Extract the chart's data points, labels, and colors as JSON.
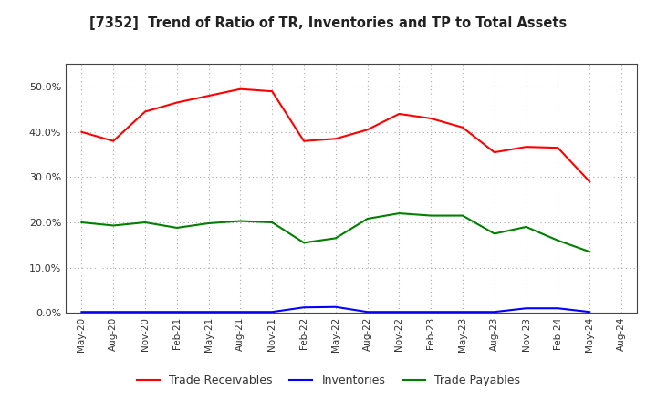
{
  "title": "[7352]  Trend of Ratio of TR, Inventories and TP to Total Assets",
  "x_labels": [
    "May-20",
    "Aug-20",
    "Nov-20",
    "Feb-21",
    "May-21",
    "Aug-21",
    "Nov-21",
    "Feb-22",
    "May-22",
    "Aug-22",
    "Nov-22",
    "Feb-23",
    "May-23",
    "Aug-23",
    "Nov-23",
    "Feb-24",
    "May-24",
    "Aug-24"
  ],
  "trade_receivables": [
    0.4,
    0.38,
    0.445,
    0.465,
    0.48,
    0.495,
    0.49,
    0.38,
    0.385,
    0.405,
    0.44,
    0.43,
    0.41,
    0.355,
    0.367,
    0.365,
    0.29,
    null
  ],
  "inventories": [
    0.002,
    0.002,
    0.002,
    0.002,
    0.002,
    0.002,
    0.002,
    0.012,
    0.013,
    0.002,
    0.002,
    0.002,
    0.002,
    0.002,
    0.01,
    0.01,
    0.002,
    null
  ],
  "trade_payables": [
    0.2,
    0.193,
    0.2,
    0.188,
    0.198,
    0.203,
    0.2,
    0.155,
    0.165,
    0.208,
    0.22,
    0.215,
    0.215,
    0.175,
    0.19,
    0.16,
    0.135,
    null
  ],
  "line_color_tr": "#FF0000",
  "line_color_inv": "#0000FF",
  "line_color_tp": "#008000",
  "ylim": [
    0.0,
    0.55
  ],
  "yticks": [
    0.0,
    0.1,
    0.2,
    0.3,
    0.4,
    0.5
  ],
  "background_color": "#FFFFFF",
  "grid_color": "#AAAAAA",
  "legend_labels": [
    "Trade Receivables",
    "Inventories",
    "Trade Payables"
  ]
}
